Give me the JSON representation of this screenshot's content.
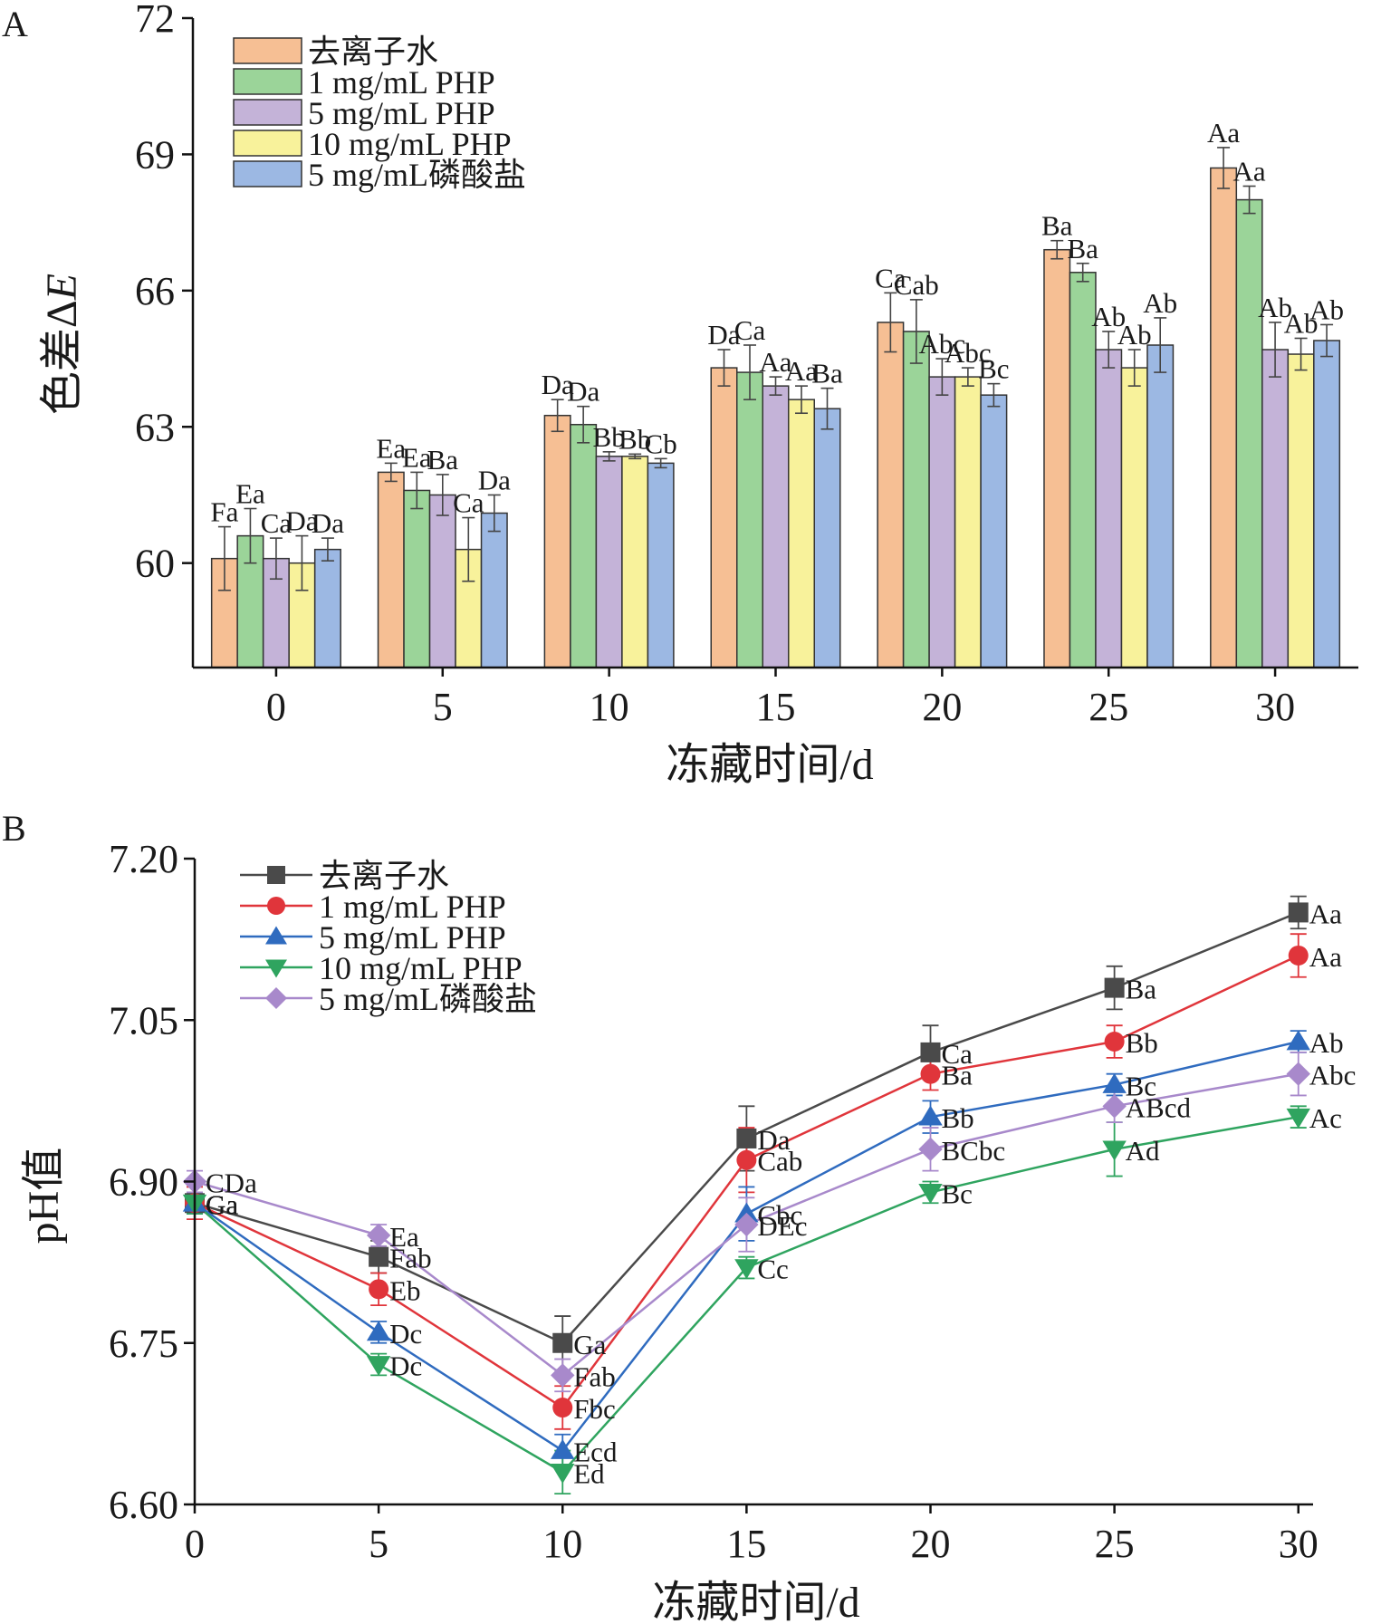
{
  "colors": {
    "bar_fill": [
      "#f6bf94",
      "#9bd499",
      "#c4b3d8",
      "#f8f29b",
      "#9cb8e3"
    ],
    "line": [
      "#4a4a4a",
      "#e0353b",
      "#2f6bbf",
      "#2fa45f",
      "#a889cb"
    ],
    "markers": [
      "square",
      "circle",
      "triangle-up",
      "triangle-down",
      "diamond"
    ]
  },
  "chart_data": [
    {
      "panel_label": "A",
      "type": "bar",
      "xlabel": "冻藏时间/d",
      "ylabel": "色差ΔE",
      "ylabel_main": "色差Δ",
      "ylabel_italic": "E",
      "categories": [
        "0",
        "5",
        "10",
        "15",
        "20",
        "25",
        "30"
      ],
      "ylim": [
        57.7,
        72
      ],
      "yticks": [
        "60",
        "63",
        "66",
        "69",
        "72"
      ],
      "legend_position": "top-left",
      "series": [
        {
          "name": "去离子水",
          "values": [
            60.1,
            62.0,
            63.25,
            64.3,
            65.3,
            66.9,
            68.7
          ],
          "errors": [
            0.7,
            0.2,
            0.35,
            0.4,
            0.65,
            0.2,
            0.45
          ],
          "labels": [
            "Fa",
            "Ea",
            "Da",
            "Da",
            "Ca",
            "Ba",
            "Aa"
          ]
        },
        {
          "name": "1 mg/mL PHP",
          "values": [
            60.6,
            61.6,
            63.05,
            64.2,
            65.1,
            66.4,
            68.0
          ],
          "errors": [
            0.6,
            0.4,
            0.4,
            0.6,
            0.7,
            0.2,
            0.3
          ],
          "labels": [
            "Ea",
            "Ea",
            "Da",
            "Ca",
            "Cab",
            "Ba",
            "Aa"
          ]
        },
        {
          "name": "5 mg/mL PHP",
          "values": [
            60.1,
            61.5,
            62.35,
            63.9,
            64.1,
            64.7,
            64.7
          ],
          "errors": [
            0.45,
            0.45,
            0.1,
            0.2,
            0.4,
            0.4,
            0.6
          ],
          "labels": [
            "Ca",
            "Ba",
            "Bb",
            "Aa",
            "Abc",
            "Ab",
            "Ab"
          ]
        },
        {
          "name": "10 mg/mL PHP",
          "values": [
            60.0,
            60.3,
            62.35,
            63.6,
            64.1,
            64.3,
            64.6
          ],
          "errors": [
            0.6,
            0.7,
            0.05,
            0.3,
            0.2,
            0.4,
            0.35
          ],
          "labels": [
            "Da",
            "Ca",
            "Bb",
            "Aa",
            "Abc",
            "Ab",
            "Ab"
          ]
        },
        {
          "name": "5 mg/mL磷酸盐",
          "values": [
            60.3,
            61.1,
            62.2,
            63.4,
            63.7,
            64.8,
            64.9
          ],
          "errors": [
            0.25,
            0.4,
            0.1,
            0.45,
            0.25,
            0.6,
            0.35
          ],
          "labels": [
            "Da",
            "Da",
            "Cb",
            "Ba",
            "Bc",
            "Ab",
            "Ab"
          ]
        }
      ]
    },
    {
      "panel_label": "B",
      "type": "line",
      "xlabel": "冻藏时间/d",
      "ylabel": "pH值",
      "x": [
        0,
        5,
        10,
        15,
        20,
        25,
        30
      ],
      "xticks": [
        "0",
        "5",
        "10",
        "15",
        "20",
        "25",
        "30"
      ],
      "xlim": [
        0,
        30.4
      ],
      "ylim": [
        6.6,
        7.2
      ],
      "yticks": [
        "6.60",
        "6.75",
        "6.90",
        "7.05",
        "7.20"
      ],
      "legend_position": "top-left",
      "series": [
        {
          "name": "去离子水",
          "values": [
            6.88,
            6.83,
            6.75,
            6.94,
            7.02,
            7.08,
            7.15
          ],
          "errors": [
            0.01,
            0.015,
            0.025,
            0.03,
            0.025,
            0.02,
            0.015
          ],
          "labels": [
            "Ga",
            "Fab",
            "Ga",
            "Da",
            "Ca",
            "Ba",
            "Aa"
          ]
        },
        {
          "name": "1 mg/mL PHP",
          "values": [
            6.88,
            6.8,
            6.69,
            6.92,
            7.0,
            7.03,
            7.11
          ],
          "errors": [
            0.015,
            0.015,
            0.02,
            0.03,
            0.015,
            0.015,
            0.02
          ],
          "labels": [
            "Ga",
            "Eb",
            "Fbc",
            "Cab",
            "Ba",
            "Bb",
            "Aa"
          ]
        },
        {
          "name": "5 mg/mL PHP",
          "values": [
            6.88,
            6.76,
            6.65,
            6.87,
            6.96,
            6.99,
            7.03
          ],
          "errors": [
            0.01,
            0.01,
            0.015,
            0.025,
            0.015,
            0.01,
            0.01
          ],
          "labels": [
            "Ga",
            "Dc",
            "Ecd",
            "Cbc",
            "Bb",
            "Bc",
            "Ab"
          ]
        },
        {
          "name": "10 mg/mL PHP",
          "values": [
            6.88,
            6.73,
            6.63,
            6.82,
            6.89,
            6.93,
            6.96
          ],
          "errors": [
            0.01,
            0.01,
            0.02,
            0.01,
            0.01,
            0.025,
            0.01
          ],
          "labels": [
            "Ga",
            "Dc",
            "Ed",
            "Cc",
            "Bc",
            "Ad",
            "Ac"
          ]
        },
        {
          "name": "5 mg/mL磷酸盐",
          "values": [
            6.9,
            6.85,
            6.72,
            6.86,
            6.93,
            6.97,
            7.0
          ],
          "errors": [
            0.01,
            0.01,
            0.015,
            0.025,
            0.02,
            0.015,
            0.02
          ],
          "labels": [
            "CDa",
            "Ea",
            "Fab",
            "DEc",
            "BCbc",
            "ABcd",
            "Abc"
          ]
        }
      ]
    }
  ]
}
